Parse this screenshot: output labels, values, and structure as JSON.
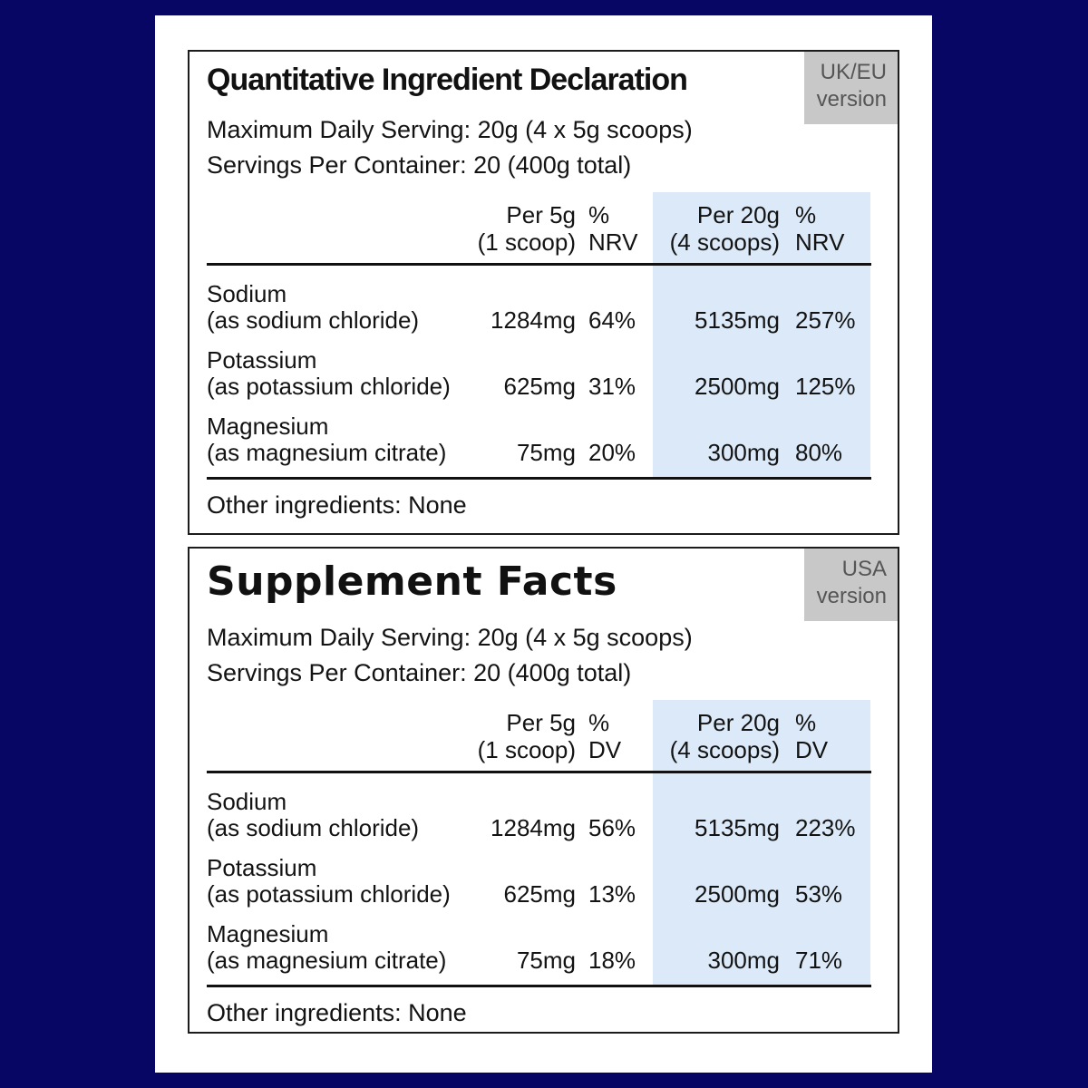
{
  "colors": {
    "background": "#080664",
    "card": "#ffffff",
    "panel_border": "#1c1c1c",
    "highlight_column": "#dbe9f8",
    "badge_background": "#c8c8c8",
    "badge_text": "#565656"
  },
  "panels": [
    {
      "title": "Quantitative Ingredient Declaration",
      "badge_line1": "UK/EU",
      "badge_line2": "version",
      "meta1": "Maximum Daily Serving: 20g (4 x 5g scoops)",
      "meta2": "Servings Per Container: 20 (400g total)",
      "columns": {
        "per_serving_l1": "Per 5g",
        "per_serving_l2": "(1 scoop)",
        "pct_l1": "%",
        "pct_l2": "NRV",
        "per_max_l1": "Per 20g",
        "per_max_l2": "(4 scoops)",
        "pct2_l1": "%",
        "pct2_l2": "NRV"
      },
      "rows": [
        {
          "name": "Sodium",
          "source": "(as sodium chloride)",
          "per_serving": "1284mg",
          "pct_serving": "64%",
          "per_max": "5135mg",
          "pct_max": "257%"
        },
        {
          "name": "Potassium",
          "source": "(as potassium chloride)",
          "per_serving": "625mg",
          "pct_serving": "31%",
          "per_max": "2500mg",
          "pct_max": "125%"
        },
        {
          "name": "Magnesium",
          "source": "(as magnesium citrate)",
          "per_serving": "75mg",
          "pct_serving": "20%",
          "per_max": "300mg",
          "pct_max": "80%"
        }
      ],
      "other_ingredients": "Other ingredients: None"
    },
    {
      "title": "Supplement Facts",
      "badge_line1": "USA",
      "badge_line2": "version",
      "meta1": "Maximum Daily Serving: 20g (4 x 5g scoops)",
      "meta2": "Servings Per Container: 20 (400g total)",
      "columns": {
        "per_serving_l1": "Per 5g",
        "per_serving_l2": "(1 scoop)",
        "pct_l1": "%",
        "pct_l2": "DV",
        "per_max_l1": "Per 20g",
        "per_max_l2": "(4 scoops)",
        "pct2_l1": "%",
        "pct2_l2": "DV"
      },
      "rows": [
        {
          "name": "Sodium",
          "source": "(as sodium chloride)",
          "per_serving": "1284mg",
          "pct_serving": "56%",
          "per_max": "5135mg",
          "pct_max": "223%"
        },
        {
          "name": "Potassium",
          "source": "(as potassium chloride)",
          "per_serving": "625mg",
          "pct_serving": "13%",
          "per_max": "2500mg",
          "pct_max": "53%"
        },
        {
          "name": "Magnesium",
          "source": "(as magnesium citrate)",
          "per_serving": "75mg",
          "pct_serving": "18%",
          "per_max": "300mg",
          "pct_max": "71%"
        }
      ],
      "other_ingredients": "Other ingredients: None"
    }
  ]
}
